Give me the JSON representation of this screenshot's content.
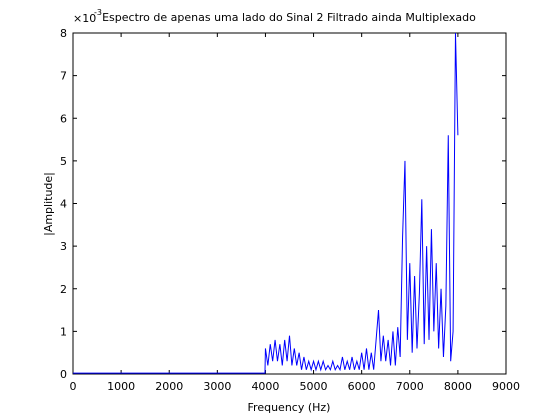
{
  "chart_data": {
    "type": "line",
    "title": "Espectro de apenas uma lado do Sinal 2 Filtrado ainda Multiplexado",
    "x_label": "Frequency (Hz)",
    "y_label": "|Amplitude|",
    "y_multiplier": "×10",
    "y_multiplier_exponent": "-3",
    "xlim": [
      0,
      9000
    ],
    "xticks": [
      0,
      1000,
      2000,
      3000,
      4000,
      5000,
      6000,
      7000,
      8000,
      9000
    ],
    "ylim": [
      0,
      8
    ],
    "yticks": [
      0,
      1,
      2,
      3,
      4,
      5,
      6,
      7,
      8
    ],
    "grid": false,
    "series": [
      {
        "color": "#0000ff",
        "x": [
          0,
          3990,
          4000,
          4050,
          4100,
          4150,
          4200,
          4250,
          4300,
          4350,
          4400,
          4450,
          4500,
          4550,
          4600,
          4650,
          4700,
          4750,
          4800,
          4850,
          4900,
          4950,
          5000,
          5050,
          5100,
          5150,
          5200,
          5250,
          5300,
          5350,
          5400,
          5450,
          5500,
          5550,
          5600,
          5650,
          5700,
          5750,
          5800,
          5850,
          5900,
          5950,
          6000,
          6050,
          6100,
          6150,
          6200,
          6250,
          6300,
          6350,
          6400,
          6450,
          6500,
          6550,
          6600,
          6650,
          6700,
          6750,
          6800,
          6850,
          6900,
          6950,
          7000,
          7050,
          7100,
          7150,
          7200,
          7250,
          7300,
          7350,
          7400,
          7450,
          7500,
          7550,
          7600,
          7650,
          7700,
          7750,
          7800,
          7850,
          7900,
          7950,
          8000
        ],
        "values": [
          0.02,
          0.02,
          0.6,
          0.2,
          0.7,
          0.3,
          0.8,
          0.3,
          0.7,
          0.2,
          0.8,
          0.3,
          0.9,
          0.2,
          0.6,
          0.2,
          0.5,
          0.1,
          0.4,
          0.1,
          0.3,
          0.1,
          0.3,
          0.1,
          0.3,
          0.1,
          0.3,
          0.1,
          0.2,
          0.1,
          0.3,
          0.1,
          0.2,
          0.1,
          0.4,
          0.1,
          0.3,
          0.1,
          0.4,
          0.1,
          0.3,
          0.1,
          0.5,
          0.1,
          0.6,
          0.1,
          0.5,
          0.1,
          0.8,
          1.5,
          0.3,
          0.9,
          0.3,
          0.8,
          0.2,
          1.0,
          0.2,
          1.1,
          0.4,
          3.2,
          5.0,
          0.8,
          2.6,
          0.5,
          2.3,
          0.6,
          1.9,
          4.1,
          0.7,
          3.0,
          0.8,
          3.4,
          1.0,
          2.6,
          0.6,
          2.0,
          0.4,
          1.6,
          5.6,
          0.3,
          1.0,
          8.0,
          5.6
        ]
      }
    ]
  }
}
